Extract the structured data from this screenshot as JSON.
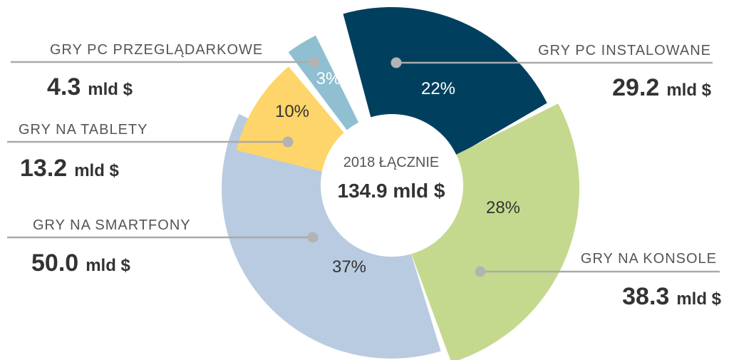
{
  "chart_data": {
    "type": "pie",
    "title": "",
    "center": {
      "title": "2018 ŁĄCZNIE",
      "value": "134.9 mld $"
    },
    "unit": "mld $",
    "slices": [
      {
        "label": "GRY PC INSTALOWANE",
        "value": 29.2,
        "value_text": "29.2",
        "percent": 22,
        "percent_text": "22%",
        "color": "#00405e",
        "text_color": "#ffffff"
      },
      {
        "label": "GRY NA KONSOLE",
        "value": 38.3,
        "value_text": "38.3",
        "percent": 28,
        "percent_text": "28%",
        "color": "#c5d98e",
        "text_color": "#333333"
      },
      {
        "label": "GRY NA SMARTFONY",
        "value": 50.0,
        "value_text": "50.0",
        "percent": 37,
        "percent_text": "37%",
        "color": "#b9cbe0",
        "text_color": "#333333"
      },
      {
        "label": "GRY NA TABLETY",
        "value": 13.2,
        "value_text": "13.2",
        "percent": 10,
        "percent_text": "10%",
        "color": "#fdd56a",
        "text_color": "#333333"
      },
      {
        "label": "GRY PC PRZEGLĄDARKOWE",
        "value": 4.3,
        "value_text": "4.3",
        "percent": 3,
        "percent_text": "3%",
        "color": "#8fbfd1",
        "text_color": "#ffffff"
      }
    ],
    "colors": {
      "leader": "#aaaaaa",
      "dot": "#b3b3b3",
      "hole": "#ffffff"
    }
  }
}
